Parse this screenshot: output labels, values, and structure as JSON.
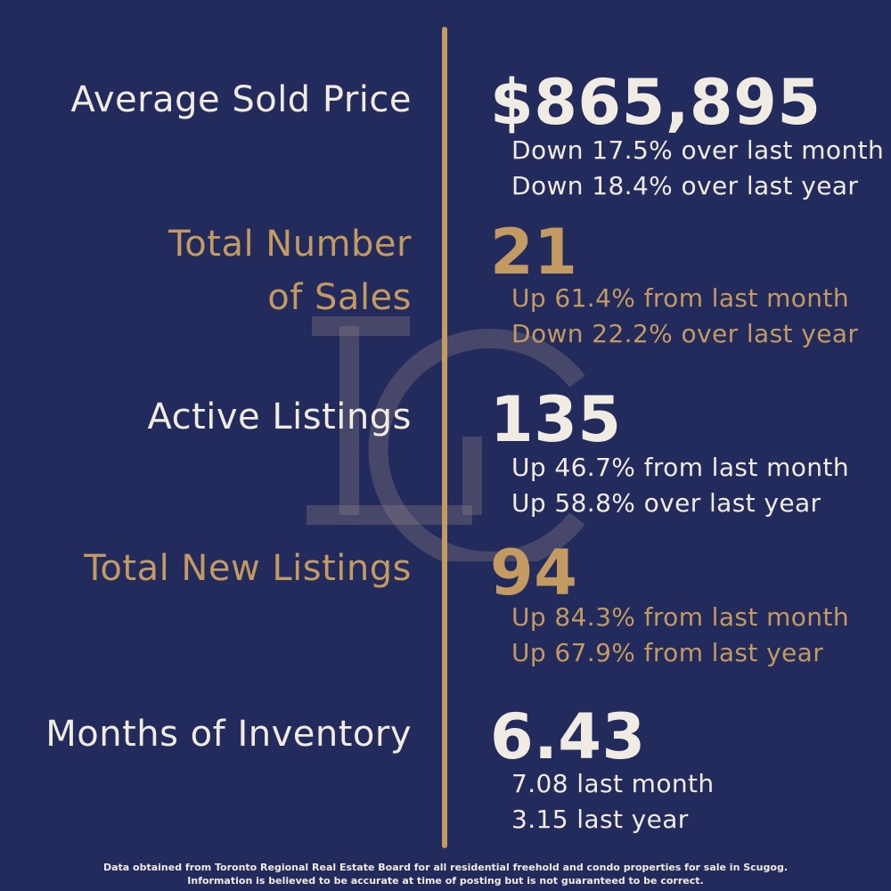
{
  "brand": {
    "background": "#232a5c",
    "gold": "#c29a62",
    "cream": "#f1ece3",
    "watermark_icon": "lc-monogram-icon"
  },
  "stats": [
    {
      "label": "Average Sold Price",
      "value": "$865,895",
      "change_month": "Down 17.5% over last month",
      "change_year": "Down 18.4% over last year"
    },
    {
      "label_line1": "Total Number",
      "label_line2": "of Sales",
      "value": "21",
      "change_month": "Up 61.4% from last month",
      "change_year": "Down 22.2% over last year"
    },
    {
      "label": "Active Listings",
      "value": "135",
      "change_month": "Up 46.7% from last month",
      "change_year": "Up 58.8% over last year"
    },
    {
      "label": "Total New Listings",
      "value": "94",
      "change_month": "Up 84.3% from last month",
      "change_year": "Up 67.9% from last year"
    },
    {
      "label": "Months of Inventory",
      "value": "6.43",
      "change_month": "7.08 last month",
      "change_year": "3.15 last year"
    }
  ],
  "footer": {
    "line1": "Data obtained from Toronto Regional Real Estate Board for all residential freehold and condo properties for sale in Scugog.",
    "line2": "Information is believed to be accurate at time of posting but is not guaranteed to be correct."
  }
}
